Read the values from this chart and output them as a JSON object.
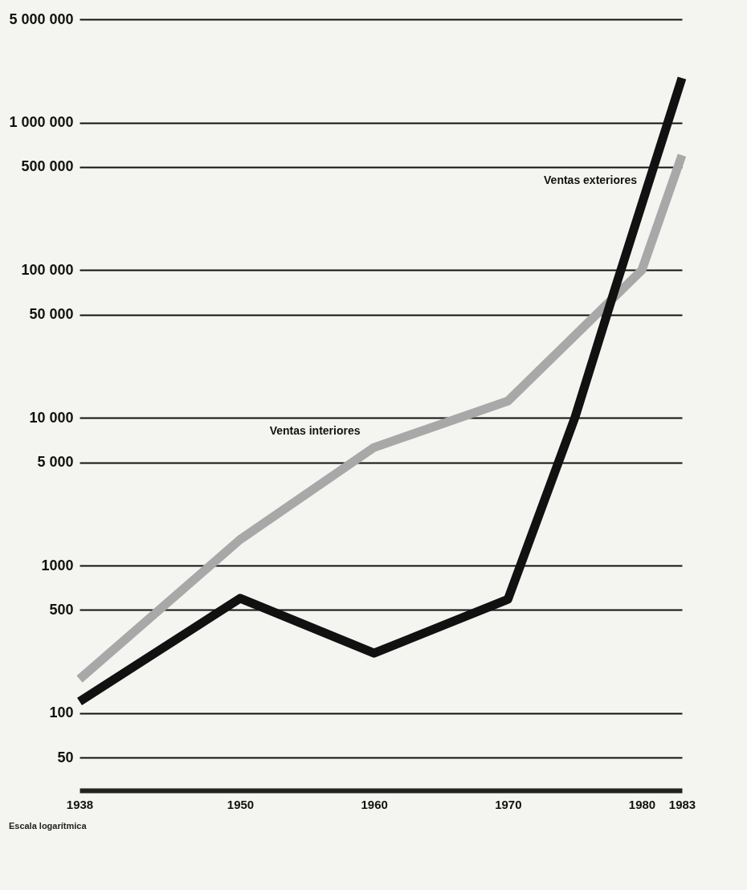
{
  "chart_data": {
    "type": "line",
    "x": [
      1938,
      1950,
      1960,
      1970,
      1980,
      1983
    ],
    "series": [
      {
        "name": "Ventas interiores",
        "color": "#a8a8a8",
        "values": [
          170,
          1500,
          6300,
          13000,
          100000,
          600000
        ]
      },
      {
        "name": "Ventas exteriores",
        "color": "#111111",
        "x": [
          1938,
          1950,
          1960,
          1970,
          1975,
          1978,
          1983
        ],
        "values": [
          120,
          600,
          255,
          590,
          10000,
          75000,
          2000000
        ]
      }
    ],
    "log": "y",
    "xlim": [
      1938,
      1983
    ],
    "xticks": [
      1938,
      1950,
      1960,
      1970,
      1980,
      1983
    ],
    "ylim": [
      30,
      5000000
    ],
    "yticks": [
      50,
      100,
      500,
      1000,
      {
        "value": 5000,
        "label": "5 000"
      },
      {
        "value": 10000,
        "label": "10 000"
      },
      {
        "value": 50000,
        "label": "50 000"
      },
      {
        "value": 100000,
        "label": "100 000"
      },
      {
        "value": 500000,
        "label": "500 000"
      },
      {
        "value": 1000000,
        "label": "1 000 000"
      },
      {
        "value": 5000000,
        "label": "5 000 000"
      }
    ],
    "grid": "y",
    "marker": "none",
    "line_style": "solid",
    "annotations": [
      "Escala logarítmica"
    ]
  }
}
